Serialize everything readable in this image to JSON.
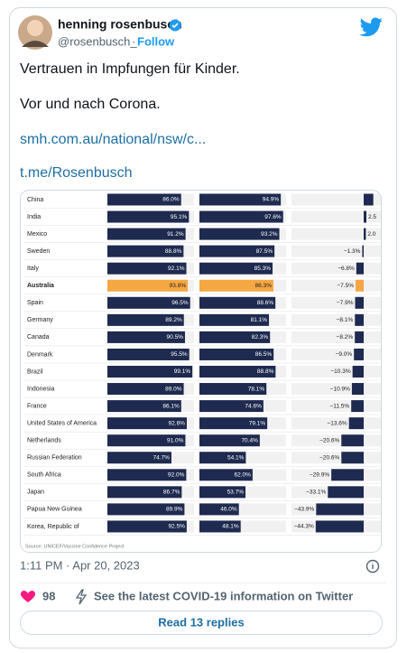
{
  "tweet": {
    "author": {
      "name": "henning rosenbusch",
      "handle": "@rosenbusch_",
      "separator": "·",
      "follow": "Follow"
    },
    "text": [
      "Vertrauen in Impfungen für Kinder.",
      "Vor und nach Corona.",
      "smh.com.au/national/nsw/c...",
      "t.me/Rosenbusch"
    ],
    "timestamp": "1:11 PM · Apr 20, 2023",
    "likes": 98,
    "covid_info": "See the latest COVID-19 information on Twitter",
    "replies_button": "Read 13 replies"
  },
  "chart_data": {
    "type": "bar",
    "source": "Source: UNICEF/Vaccine Confidence Project",
    "categories": [
      "China",
      "India",
      "Mexico",
      "Sweden",
      "Italy",
      "Australia",
      "Spain",
      "Germany",
      "Canada",
      "Denmark",
      "Brazil",
      "Indonesia",
      "France",
      "United States of America",
      "Netherlands",
      "Russian Federation",
      "South Africa",
      "Japan",
      "Papua New Guinea",
      "Korea, Republic of"
    ],
    "highlight": {
      "category": "Australia",
      "color": "#f5a742"
    },
    "series": [
      {
        "color": "#1e2a4f",
        "values": [
          86.0,
          95.1,
          91.2,
          88.8,
          92.1,
          93.8,
          96.5,
          89.2,
          90.5,
          95.5,
          99.1,
          89.0,
          86.1,
          92.6,
          91.0,
          74.7,
          92.0,
          86.7,
          89.9,
          92.5
        ],
        "value_labels": [
          "86.0%",
          "95.1%",
          "91.2%",
          "88.8%",
          "92.1%",
          "93.8%",
          "96.5%",
          "89.2%",
          "90.5%",
          "95.5%",
          "99.1%",
          "89.0%",
          "86.1%",
          "92.6%",
          "91.0%",
          "74.7%",
          "92.0%",
          "86.7%",
          "89.9%",
          "92.5%"
        ]
      },
      {
        "color": "#1e2a4f",
        "values": [
          94.9,
          97.6,
          93.2,
          87.5,
          85.3,
          86.3,
          88.6,
          81.1,
          82.3,
          86.5,
          88.8,
          78.1,
          74.6,
          79.1,
          70.4,
          54.1,
          62.0,
          53.7,
          46.0,
          48.1
        ],
        "value_labels": [
          "94.9%",
          "97.6%",
          "93.2%",
          "87.5%",
          "85.3%",
          "86.3%",
          "88.6%",
          "81.1%",
          "82.3%",
          "86.5%",
          "88.8%",
          "78.1%",
          "74.6%",
          "79.1%",
          "70.4%",
          "54.1%",
          "62.0%",
          "53.7%",
          "46.0%",
          "48.1%"
        ]
      },
      {
        "color": "#1e2a4f",
        "values": [
          8.9,
          2.5,
          2.0,
          -1.3,
          -6.8,
          -7.5,
          -7.9,
          -8.1,
          -8.2,
          -9.0,
          -10.3,
          -10.9,
          -11.5,
          -13.6,
          -20.6,
          -20.6,
          -29.9,
          -33.1,
          -43.9,
          -44.3
        ],
        "value_labels": [
          null,
          "2.5",
          "2.0",
          "−1.3%",
          "−6.8%",
          "−7.5%",
          "−7.9%",
          "−8.1%",
          "−8.2%",
          "−9.0%",
          "−10.3%",
          "−10.9%",
          "−11.5%",
          "−13.6%",
          "−20.6%",
          "−20.6%",
          "−29.9%",
          "−33.1%",
          "−43.9%",
          "−44.3%"
        ]
      }
    ]
  }
}
